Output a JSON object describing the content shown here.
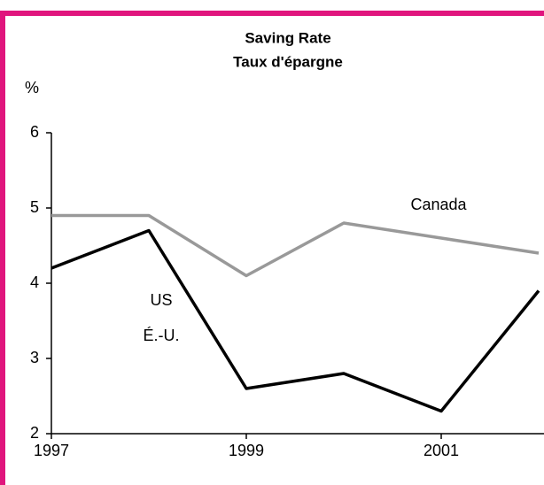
{
  "chart_data": {
    "type": "line",
    "title": "Saving Rate",
    "subtitle": "Taux d'épargne",
    "ylabel": "%",
    "x": [
      1997,
      1998,
      1999,
      2000,
      2001,
      2002
    ],
    "series": [
      {
        "name": "Canada",
        "color": "#999999",
        "values": [
          4.9,
          4.9,
          4.1,
          4.8,
          4.6,
          4.4
        ]
      },
      {
        "name": "US",
        "color": "#000000",
        "values": [
          4.2,
          4.7,
          2.6,
          2.8,
          2.3,
          3.9
        ]
      }
    ],
    "annotations": [
      "É.-U."
    ],
    "xlim": [
      1997,
      2002
    ],
    "xticks": [
      1997,
      1999,
      2001
    ],
    "ylim": [
      2,
      6
    ],
    "yticks": [
      2,
      3,
      4,
      5,
      6
    ],
    "grid": false
  }
}
